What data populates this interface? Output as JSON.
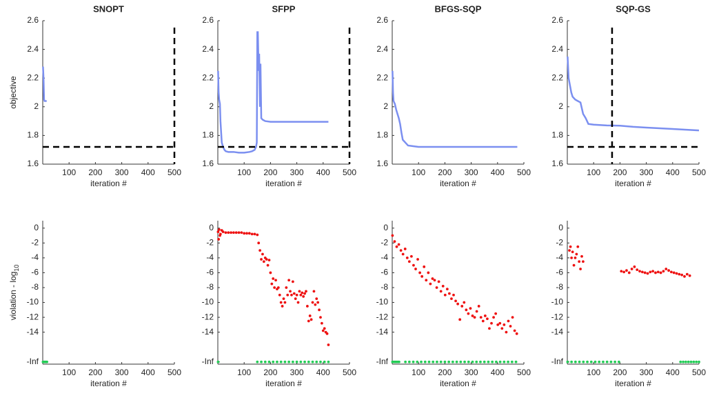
{
  "chart_data": [
    {
      "type": "line",
      "title": "SNOPT",
      "x_label": "iteration #",
      "y_label": "objective",
      "xlim": [
        0,
        500
      ],
      "xticks": [
        100,
        200,
        300,
        400,
        500
      ],
      "ylim": [
        1.6,
        2.6
      ],
      "yticks": [
        1.6,
        1.8,
        2,
        2.2,
        2.4,
        2.6
      ],
      "ref_y": 1.72,
      "ref_x": 500,
      "series": [
        {
          "color": "#7b8ff0",
          "x": [
            1,
            3,
            5,
            7,
            10,
            15
          ],
          "values": [
            2.28,
            2.2,
            2.05,
            2.04,
            2.04,
            2.04
          ]
        }
      ]
    },
    {
      "type": "line",
      "title": "SFPP",
      "x_label": "iteration #",
      "xlim": [
        0,
        500
      ],
      "xticks": [
        100,
        200,
        300,
        400,
        500
      ],
      "ylim": [
        1.6,
        2.6
      ],
      "yticks": [
        1.6,
        1.8,
        2,
        2.2,
        2.4,
        2.6
      ],
      "ref_y": 1.72,
      "ref_x": 500,
      "series": [
        {
          "color": "#7b8ff0",
          "x": [
            1,
            3,
            5,
            8,
            10,
            15,
            20,
            25,
            30,
            40,
            60,
            80,
            100,
            120,
            130,
            140,
            145,
            148,
            150,
            152,
            155,
            157,
            160,
            162,
            165,
            170,
            180,
            200,
            250,
            300,
            350,
            400,
            420
          ],
          "values": [
            2.25,
            2.1,
            2.05,
            2.02,
            1.9,
            1.75,
            1.72,
            1.7,
            1.69,
            1.685,
            1.685,
            1.68,
            1.68,
            1.685,
            1.69,
            1.7,
            1.72,
            1.75,
            2.52,
            2.52,
            2.25,
            2.37,
            2.0,
            2.3,
            1.92,
            1.91,
            1.9,
            1.895,
            1.895,
            1.895,
            1.895,
            1.895,
            1.895
          ]
        }
      ]
    },
    {
      "type": "line",
      "title": "BFGS-SQP",
      "x_label": "iteration #",
      "xlim": [
        0,
        500
      ],
      "xticks": [
        100,
        200,
        300,
        400,
        500
      ],
      "ylim": [
        1.6,
        2.6
      ],
      "yticks": [
        1.6,
        1.8,
        2,
        2.2,
        2.4,
        2.6
      ],
      "series": [
        {
          "color": "#7b8ff0",
          "x": [
            1,
            3,
            5,
            10,
            15,
            20,
            25,
            30,
            35,
            40,
            50,
            60,
            80,
            100,
            200,
            300,
            400,
            475
          ],
          "values": [
            2.25,
            2.1,
            2.04,
            2.02,
            1.98,
            1.95,
            1.92,
            1.88,
            1.82,
            1.77,
            1.75,
            1.73,
            1.725,
            1.72,
            1.72,
            1.72,
            1.72,
            1.72
          ]
        }
      ]
    },
    {
      "type": "line",
      "title": "SQP-GS",
      "x_label": "iteration #",
      "xlim": [
        0,
        500
      ],
      "xticks": [
        100,
        200,
        300,
        400,
        500
      ],
      "ylim": [
        1.6,
        2.6
      ],
      "yticks": [
        1.6,
        1.8,
        2,
        2.2,
        2.4,
        2.6
      ],
      "ref_y": 1.72,
      "ref_x": 170,
      "series": [
        {
          "color": "#7b8ff0",
          "x": [
            1,
            5,
            10,
            15,
            20,
            30,
            40,
            50,
            60,
            70,
            80,
            100,
            150,
            200,
            250,
            300,
            400,
            500
          ],
          "values": [
            2.35,
            2.2,
            2.15,
            2.1,
            2.07,
            2.05,
            2.04,
            2.03,
            1.95,
            1.92,
            1.88,
            1.875,
            1.87,
            1.868,
            1.86,
            1.855,
            1.845,
            1.835
          ]
        }
      ]
    },
    {
      "type": "scatter",
      "x_label": "iteration #",
      "y_label": "violation - log",
      "y_label_subscript": "10",
      "xlim": [
        0,
        500
      ],
      "xticks": [
        100,
        200,
        300,
        400,
        500
      ],
      "ylim": [
        -18.3,
        1
      ],
      "yticks": [
        0,
        -2,
        -4,
        -6,
        -8,
        -10,
        -12,
        -14,
        {
          "value": -18,
          "label": "-Inf"
        }
      ],
      "series": [
        {
          "color": "#22cc55",
          "x": [
            1,
            4,
            7,
            10,
            13,
            16
          ],
          "values": [
            -18,
            -18,
            -18,
            -18,
            -18,
            -18
          ]
        }
      ]
    },
    {
      "type": "scatter",
      "x_label": "iteration #",
      "xlim": [
        0,
        500
      ],
      "xticks": [
        100,
        200,
        300,
        400,
        500
      ],
      "ylim": [
        -18.3,
        1
      ],
      "yticks": [
        0,
        -2,
        -4,
        -6,
        -8,
        -10,
        -12,
        -14,
        {
          "value": -18,
          "label": "-Inf"
        }
      ],
      "series": [
        {
          "color": "#ee1111",
          "x": [
            1,
            3,
            5,
            8,
            10,
            15,
            20,
            30,
            40,
            50,
            60,
            70,
            80,
            90,
            100,
            110,
            120,
            130,
            140,
            150,
            155,
            160,
            165,
            170,
            175,
            180,
            185,
            190,
            195,
            200,
            205,
            210,
            215,
            220,
            225,
            230,
            235,
            240,
            245,
            250,
            255,
            260,
            265,
            270,
            275,
            280,
            285,
            290,
            295,
            300,
            305,
            310,
            315,
            320,
            325,
            330,
            335,
            340,
            345,
            350,
            355,
            360,
            365,
            370,
            375,
            380,
            385,
            390,
            395,
            400,
            405,
            410,
            415,
            420
          ],
          "values": [
            -0.5,
            -1.5,
            -0.2,
            -1,
            -0.8,
            -0.3,
            -0.5,
            -0.6,
            -0.6,
            -0.6,
            -0.6,
            -0.6,
            -0.6,
            -0.6,
            -0.7,
            -0.7,
            -0.7,
            -0.8,
            -0.8,
            -0.9,
            -2,
            -3,
            -4.2,
            -3.5,
            -4.5,
            -4,
            -4.2,
            -5,
            -4.3,
            -6,
            -7.5,
            -6.8,
            -8,
            -7,
            -8.2,
            -8,
            -9,
            -10,
            -10.5,
            -9.5,
            -10,
            -8,
            -9,
            -7,
            -8.5,
            -9,
            -7.2,
            -8.8,
            -9.5,
            -9,
            -10,
            -8.5,
            -9,
            -8.7,
            -9.2,
            -8.8,
            -8.5,
            -10.5,
            -12.5,
            -11.8,
            -12.3,
            -10,
            -8.5,
            -10.3,
            -9.5,
            -10,
            -11,
            -12,
            -12.8,
            -13.8,
            -13.5,
            -14,
            -14.2,
            -15.7
          ]
        },
        {
          "color": "#22cc55",
          "x": [
            1,
            150,
            165,
            180,
            195,
            210,
            225,
            240,
            255,
            270,
            285,
            300,
            315,
            330,
            345,
            360,
            375,
            390,
            405,
            420
          ],
          "values": [
            -18,
            -18,
            -18,
            -18,
            -18,
            -18,
            -18,
            -18,
            -18,
            -18,
            -18,
            -18,
            -18,
            -18,
            -18,
            -18,
            -18,
            -18,
            -18,
            -18
          ]
        }
      ]
    },
    {
      "type": "scatter",
      "x_label": "iteration #",
      "xlim": [
        0,
        500
      ],
      "xticks": [
        100,
        200,
        300,
        400,
        500
      ],
      "ylim": [
        -18.3,
        1
      ],
      "yticks": [
        0,
        -2,
        -4,
        -6,
        -8,
        -10,
        -12,
        -14,
        {
          "value": -18,
          "label": "-Inf"
        }
      ],
      "series": [
        {
          "color": "#ee1111",
          "x": [
            1,
            9,
            17,
            25,
            33,
            41,
            49,
            57,
            65,
            73,
            81,
            89,
            97,
            105,
            113,
            121,
            129,
            137,
            145,
            153,
            161,
            169,
            177,
            185,
            193,
            201,
            209,
            217,
            225,
            233,
            241,
            249,
            257,
            265,
            273,
            281,
            289,
            297,
            305,
            313,
            321,
            329,
            337,
            345,
            353,
            361,
            369,
            377,
            385,
            393,
            401,
            409,
            417,
            425,
            433,
            441,
            449,
            457,
            465,
            473
          ],
          "values": [
            -1,
            -1.8,
            -2.5,
            -2.2,
            -3,
            -3.5,
            -2.8,
            -4,
            -4.5,
            -3.8,
            -5,
            -5.5,
            -4.2,
            -6,
            -6.5,
            -5.2,
            -7,
            -6,
            -7.5,
            -6.8,
            -7,
            -8,
            -7.2,
            -8.5,
            -7.8,
            -9,
            -8.2,
            -8.8,
            -9.5,
            -9,
            -9.8,
            -10.2,
            -12.3,
            -10.5,
            -10,
            -11,
            -11.5,
            -10.8,
            -11.8,
            -12,
            -11.2,
            -10.5,
            -12,
            -12.5,
            -11.8,
            -12.2,
            -13.5,
            -12.8,
            -12,
            -11.5,
            -13,
            -12.8,
            -13.5,
            -13,
            -14,
            -12.5,
            -13.2,
            -12,
            -13.8,
            -14.2
          ]
        },
        {
          "color": "#22cc55",
          "x": [
            1,
            6,
            11,
            16,
            21,
            26,
            50,
            65,
            80,
            95,
            110,
            125,
            140,
            155,
            170,
            185,
            200,
            215,
            230,
            245,
            260,
            275,
            290,
            305,
            320,
            335,
            350,
            365,
            380,
            395,
            410,
            425,
            440,
            455,
            470
          ],
          "values": [
            -18,
            -18,
            -18,
            -18,
            -18,
            -18,
            -18,
            -18,
            -18,
            -18,
            -18,
            -18,
            -18,
            -18,
            -18,
            -18,
            -18,
            -18,
            -18,
            -18,
            -18,
            -18,
            -18,
            -18,
            -18,
            -18,
            -18,
            -18,
            -18,
            -18,
            -18,
            -18,
            -18,
            -18,
            -18
          ]
        }
      ]
    },
    {
      "type": "scatter",
      "x_label": "iteration #",
      "xlim": [
        0,
        500
      ],
      "xticks": [
        100,
        200,
        300,
        400,
        500
      ],
      "ylim": [
        -18.3,
        1
      ],
      "yticks": [
        0,
        -2,
        -4,
        -6,
        -8,
        -10,
        -12,
        -14,
        {
          "value": -18,
          "label": "-Inf"
        }
      ],
      "series": [
        {
          "color": "#ee1111",
          "x": [
            8,
            12,
            16,
            20,
            25,
            30,
            35,
            40,
            45,
            50,
            55,
            60,
            205,
            215,
            225,
            235,
            245,
            255,
            265,
            275,
            285,
            295,
            305,
            315,
            325,
            335,
            345,
            355,
            365,
            375,
            385,
            395,
            405,
            415,
            425,
            435,
            445,
            455,
            465
          ],
          "values": [
            -3,
            -2.5,
            -4,
            -3.2,
            -5,
            -4,
            -3.5,
            -2.5,
            -4.5,
            -5.5,
            -3.8,
            -4.5,
            -5.8,
            -5.9,
            -5.7,
            -6,
            -5.5,
            -5.2,
            -5.6,
            -5.8,
            -5.9,
            -6,
            -6.1,
            -5.9,
            -5.8,
            -6,
            -5.9,
            -6,
            -5.8,
            -5.5,
            -5.7,
            -5.9,
            -6,
            -6.1,
            -6.2,
            -6.3,
            -6.5,
            -6.2,
            -6.4
          ]
        },
        {
          "color": "#22cc55",
          "x": [
            1,
            16,
            31,
            46,
            61,
            76,
            91,
            106,
            121,
            136,
            151,
            166,
            181,
            196,
            430,
            440,
            450,
            460,
            470,
            480,
            490,
            500
          ],
          "values": [
            -18,
            -18,
            -18,
            -18,
            -18,
            -18,
            -18,
            -18,
            -18,
            -18,
            -18,
            -18,
            -18,
            -18,
            -18,
            -18,
            -18,
            -18,
            -18,
            -18,
            -18,
            -18
          ]
        }
      ]
    }
  ]
}
